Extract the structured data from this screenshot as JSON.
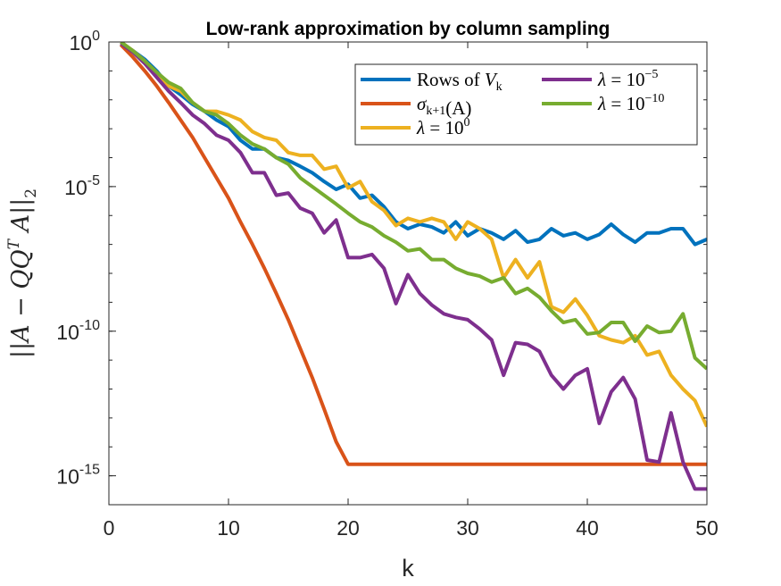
{
  "chart_data": {
    "type": "line",
    "title": "Low-rank approximation by column sampling",
    "xlabel": "k",
    "ylabel": "||A − QQ^T A||_2",
    "x_scale": "linear",
    "y_scale": "log",
    "xlim": [
      0,
      50
    ],
    "ylim": [
      1e-16,
      1
    ],
    "grid": false,
    "legend_position": "top-right",
    "x_ticks": [
      0,
      10,
      20,
      30,
      40,
      50
    ],
    "x_tick_labels": [
      "0",
      "10",
      "20",
      "30",
      "40",
      "50"
    ],
    "y_ticks": [
      {
        "value": 1,
        "base": "10",
        "exp": "0"
      },
      {
        "value": 1e-05,
        "base": "10",
        "exp": "-5"
      },
      {
        "value": 1e-10,
        "base": "10",
        "exp": "-10"
      },
      {
        "value": 1e-15,
        "base": "10",
        "exp": "-15"
      }
    ],
    "x": [
      1,
      2,
      3,
      4,
      5,
      6,
      7,
      8,
      9,
      10,
      11,
      12,
      13,
      14,
      15,
      16,
      17,
      18,
      19,
      20,
      21,
      22,
      23,
      24,
      25,
      26,
      27,
      28,
      29,
      30,
      31,
      32,
      33,
      34,
      35,
      36,
      37,
      38,
      39,
      40,
      41,
      42,
      43,
      44,
      45,
      46,
      47,
      48,
      49,
      50
    ],
    "series": [
      {
        "legend": {
          "pre": "Rows of ",
          "var": "V",
          "sub": "k",
          "sup": ""
        },
        "color": "#0072BD",
        "values": [
          0.9,
          0.5,
          0.25,
          0.1,
          0.03,
          0.015,
          0.007,
          0.004,
          0.002,
          0.0012,
          0.0004,
          0.0002,
          0.0002,
          0.0001,
          8e-05,
          5e-05,
          3e-05,
          1.5e-05,
          8e-06,
          1.2e-05,
          4e-06,
          5e-06,
          2e-06,
          6e-07,
          3.5e-07,
          5e-07,
          4e-07,
          2.5e-07,
          6e-07,
          2e-07,
          3.5e-07,
          2.5e-07,
          1.5e-07,
          3e-07,
          1.2e-07,
          1.5e-07,
          3.5e-07,
          2e-07,
          2.5e-07,
          1.5e-07,
          2.2e-07,
          5e-07,
          2.2e-07,
          1.2e-07,
          2.5e-07,
          2.5e-07,
          3.5e-07,
          3.5e-07,
          1e-07,
          1.5e-07
        ]
      },
      {
        "legend": {
          "pre": "",
          "var": "σ",
          "sub": "k+1",
          "sup": "",
          "post": "(A)"
        },
        "color": "#D95319",
        "values": [
          0.8,
          0.3,
          0.1,
          0.03,
          0.008,
          0.002,
          0.0005,
          0.0001,
          2e-05,
          4e-06,
          6e-07,
          1e-07,
          1.5e-08,
          2e-09,
          2.5e-10,
          2.5e-11,
          2.5e-12,
          2e-13,
          1.5e-14,
          2.5e-15,
          2.5e-15,
          2.5e-15,
          2.5e-15,
          2.5e-15,
          2.5e-15,
          2.5e-15,
          2.5e-15,
          2.5e-15,
          2.5e-15,
          2.5e-15,
          2.5e-15,
          2.5e-15,
          2.5e-15,
          2.5e-15,
          2.5e-15,
          2.5e-15,
          2.5e-15,
          2.5e-15,
          2.5e-15,
          2.5e-15,
          2.5e-15,
          2.5e-15,
          2.5e-15,
          2.5e-15,
          2.5e-15,
          2.5e-15,
          2.5e-15,
          2.5e-15,
          2.5e-15,
          2.5e-15
        ]
      },
      {
        "legend": {
          "pre": "",
          "var": "λ",
          "sub": "",
          "eq": " = 10",
          "sup": "0"
        },
        "color": "#EDB120",
        "values": [
          1.0,
          0.5,
          0.22,
          0.08,
          0.03,
          0.02,
          0.008,
          0.004,
          0.004,
          0.003,
          0.002,
          0.0008,
          0.0005,
          0.0004,
          0.00015,
          0.00012,
          0.00012,
          4e-05,
          5e-05,
          9e-06,
          1.5e-05,
          3e-06,
          1.5e-06,
          4.5e-07,
          8e-07,
          6e-07,
          8e-07,
          6e-07,
          1.5e-07,
          6e-07,
          3.5e-07,
          1.5e-07,
          7e-09,
          3e-08,
          7e-09,
          2.5e-08,
          7e-10,
          4.5e-10,
          1.3e-09,
          3.5e-10,
          7e-11,
          5e-11,
          4e-11,
          7e-11,
          1.5e-11,
          2e-11,
          3e-12,
          1e-12,
          4e-13,
          5e-14
        ]
      },
      {
        "legend": {
          "pre": "",
          "var": "λ",
          "sub": "",
          "eq": " = 10",
          "sup": "−5"
        },
        "color": "#7E2F8E",
        "values": [
          0.9,
          0.45,
          0.18,
          0.06,
          0.02,
          0.008,
          0.003,
          0.0015,
          0.0006,
          0.0004,
          0.00015,
          3e-05,
          3e-05,
          5e-06,
          6e-06,
          1.8e-06,
          1.2e-06,
          2.5e-07,
          7e-07,
          3.5e-08,
          3.5e-08,
          4.5e-08,
          1.5e-08,
          9e-10,
          9e-09,
          2e-09,
          8e-10,
          4e-10,
          3e-10,
          2.5e-10,
          1.2e-10,
          5e-11,
          3e-12,
          4e-11,
          3.5e-11,
          2e-11,
          3e-12,
          1e-12,
          3e-12,
          5e-12,
          6.5e-14,
          8e-13,
          2.5e-12,
          4.5e-13,
          3.5e-15,
          3e-15,
          1.5e-13,
          3e-15,
          3.5e-16,
          3.5e-16
        ]
      },
      {
        "legend": {
          "pre": "",
          "var": "λ",
          "sub": "",
          "eq": " = 10",
          "sup": "−10"
        },
        "color": "#77AC30",
        "values": [
          1.0,
          0.5,
          0.22,
          0.09,
          0.04,
          0.025,
          0.008,
          0.004,
          0.003,
          0.0015,
          0.0006,
          0.0003,
          0.0002,
          0.0001,
          6e-05,
          2e-05,
          1e-05,
          5e-06,
          2.5e-06,
          1.2e-06,
          6e-07,
          4e-07,
          2e-07,
          1.2e-07,
          6e-08,
          7e-08,
          3e-08,
          3e-08,
          1.5e-08,
          1e-08,
          8e-09,
          5e-09,
          7e-09,
          2e-09,
          3e-09,
          1.5e-09,
          5e-10,
          2e-10,
          2.5e-10,
          8e-11,
          9e-11,
          2e-10,
          2e-10,
          4.5e-11,
          1.5e-10,
          9e-11,
          1e-10,
          4e-10,
          1.2e-11,
          5e-12
        ]
      }
    ]
  }
}
